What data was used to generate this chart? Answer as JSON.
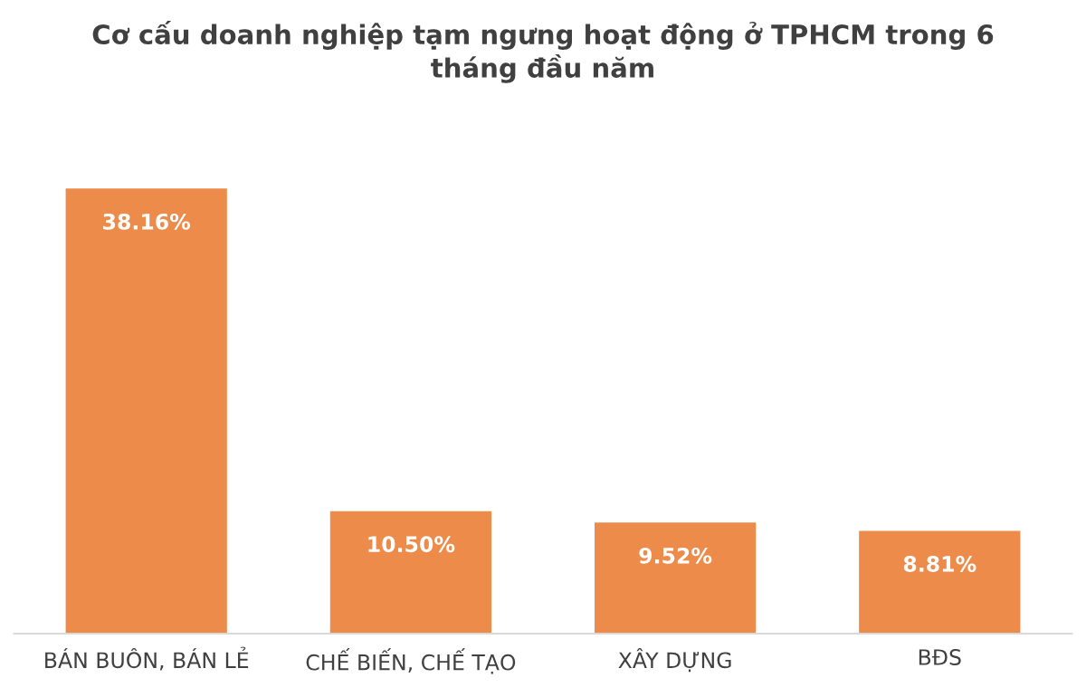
{
  "chart_data": {
    "type": "bar",
    "title": "Cơ cấu doanh nghiệp tạm ngưng hoạt động ở TPHCM trong 6\ntháng đầu năm",
    "categories": [
      "BÁN BUÔN, BÁN LẺ",
      "CHẾ BIẾN, CHẾ TẠO",
      "XÂY DỰNG",
      "BĐS"
    ],
    "values": [
      38.16,
      10.5,
      9.52,
      8.81
    ],
    "value_labels": [
      "38.16%",
      "10.50%",
      "9.52%",
      "8.81%"
    ],
    "color": "#ed8b4a",
    "grid": false,
    "legend": false
  }
}
